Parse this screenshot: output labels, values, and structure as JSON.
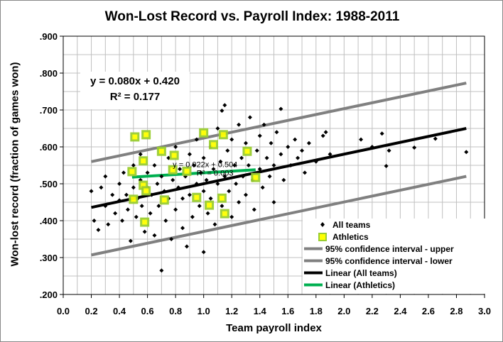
{
  "chart_data": {
    "type": "scatter",
    "title": "Won-Lost Record vs. Payroll Index: 1988-2011",
    "xlabel": "Team payroll index",
    "ylabel": "Won-lost record (fraction of games won)",
    "xlim": [
      0.0,
      3.0
    ],
    "ylim": [
      0.2,
      0.9
    ],
    "x_ticks": [
      "0.0",
      "0.2",
      "0.4",
      "0.6",
      "0.8",
      "1.0",
      "1.2",
      "1.4",
      "1.6",
      "1.8",
      "2.0",
      "2.2",
      "2.4",
      "2.6",
      "2.8",
      "3.0"
    ],
    "y_ticks": [
      ".200",
      ".300",
      ".400",
      ".500",
      ".600",
      ".700",
      ".800",
      ".900"
    ],
    "grid": true,
    "legend_position": "bottom-right",
    "equation": {
      "line1": "y = 0.080x + 0.420",
      "line2": "R² = 0.177"
    },
    "athletics_equation": {
      "line1": "y = 0.022x + 0.504",
      "line2": "R² = 0.003"
    },
    "series": [
      {
        "name": "All teams",
        "kind": "points",
        "color": "#000000",
        "points": [
          [
            0.2,
            0.48
          ],
          [
            0.22,
            0.4
          ],
          [
            0.25,
            0.375
          ],
          [
            0.27,
            0.49
          ],
          [
            0.3,
            0.44
          ],
          [
            0.3,
            0.52
          ],
          [
            0.32,
            0.39
          ],
          [
            0.35,
            0.47
          ],
          [
            0.37,
            0.42
          ],
          [
            0.4,
            0.5
          ],
          [
            0.4,
            0.455
          ],
          [
            0.42,
            0.4
          ],
          [
            0.43,
            0.53
          ],
          [
            0.45,
            0.47
          ],
          [
            0.46,
            0.43
          ],
          [
            0.48,
            0.345
          ],
          [
            0.5,
            0.49
          ],
          [
            0.5,
            0.55
          ],
          [
            0.52,
            0.41
          ],
          [
            0.53,
            0.46
          ],
          [
            0.55,
            0.51
          ],
          [
            0.55,
            0.58
          ],
          [
            0.56,
            0.44
          ],
          [
            0.58,
            0.37
          ],
          [
            0.6,
            0.49
          ],
          [
            0.6,
            0.53
          ],
          [
            0.62,
            0.42
          ],
          [
            0.63,
            0.47
          ],
          [
            0.65,
            0.55
          ],
          [
            0.65,
            0.36
          ],
          [
            0.67,
            0.5
          ],
          [
            0.68,
            0.44
          ],
          [
            0.7,
            0.265
          ],
          [
            0.7,
            0.52
          ],
          [
            0.72,
            0.48
          ],
          [
            0.73,
            0.4
          ],
          [
            0.75,
            0.57
          ],
          [
            0.75,
            0.46
          ],
          [
            0.77,
            0.35
          ],
          [
            0.78,
            0.51
          ],
          [
            0.8,
            0.43
          ],
          [
            0.8,
            0.6
          ],
          [
            0.82,
            0.49
          ],
          [
            0.83,
            0.54
          ],
          [
            0.85,
            0.38
          ],
          [
            0.85,
            0.46
          ],
          [
            0.87,
            0.52
          ],
          [
            0.88,
            0.33
          ],
          [
            0.9,
            0.58
          ],
          [
            0.9,
            0.47
          ],
          [
            0.92,
            0.41
          ],
          [
            0.93,
            0.55
          ],
          [
            0.95,
            0.5
          ],
          [
            0.95,
            0.62
          ],
          [
            0.97,
            0.44
          ],
          [
            0.98,
            0.53
          ],
          [
            1.0,
            0.315
          ],
          [
            1.0,
            0.48
          ],
          [
            1.0,
            0.57
          ],
          [
            1.02,
            0.51
          ],
          [
            1.03,
            0.42
          ],
          [
            1.05,
            0.6
          ],
          [
            1.05,
            0.46
          ],
          [
            1.07,
            0.54
          ],
          [
            1.08,
            0.39
          ],
          [
            1.1,
            0.5
          ],
          [
            1.1,
            0.65
          ],
          [
            1.12,
            0.56
          ],
          [
            1.13,
            0.698
          ],
          [
            1.13,
            0.44
          ],
          [
            1.15,
            0.713
          ],
          [
            1.15,
            0.52
          ],
          [
            1.17,
            0.59
          ],
          [
            1.18,
            0.48
          ],
          [
            1.2,
            0.62
          ],
          [
            1.2,
            0.41
          ],
          [
            1.22,
            0.55
          ],
          [
            1.23,
            0.5
          ],
          [
            1.25,
            0.66
          ],
          [
            1.25,
            0.45
          ],
          [
            1.27,
            0.57
          ],
          [
            1.28,
            0.52
          ],
          [
            1.3,
            0.61
          ],
          [
            1.3,
            0.47
          ],
          [
            1.32,
            0.55
          ],
          [
            1.33,
            0.68
          ],
          [
            1.35,
            0.51
          ],
          [
            1.36,
            0.43
          ],
          [
            1.38,
            0.59
          ],
          [
            1.4,
            0.63
          ],
          [
            1.4,
            0.54
          ],
          [
            1.42,
            0.49
          ],
          [
            1.43,
            0.66
          ],
          [
            1.45,
            0.57
          ],
          [
            1.47,
            0.52
          ],
          [
            1.48,
            0.61
          ],
          [
            1.5,
            0.55
          ],
          [
            1.5,
            0.45
          ],
          [
            1.52,
            0.64
          ],
          [
            1.55,
            0.703
          ],
          [
            1.55,
            0.58
          ],
          [
            1.57,
            0.51
          ],
          [
            1.6,
            0.6
          ],
          [
            1.62,
            0.55
          ],
          [
            1.65,
            0.62
          ],
          [
            1.67,
            0.57
          ],
          [
            1.7,
            0.59
          ],
          [
            1.72,
            0.53
          ],
          [
            1.75,
            0.61
          ],
          [
            1.8,
            0.56
          ],
          [
            1.85,
            0.63
          ],
          [
            1.87,
            0.64
          ],
          [
            1.9,
            0.58
          ],
          [
            2.12,
            0.62
          ],
          [
            2.2,
            0.6
          ],
          [
            2.27,
            0.636
          ],
          [
            2.3,
            0.548
          ],
          [
            2.32,
            0.59
          ],
          [
            2.5,
            0.598
          ],
          [
            2.65,
            0.622
          ],
          [
            2.87,
            0.586
          ]
        ]
      },
      {
        "name": "Athletics",
        "kind": "squares",
        "color": "#ffff00",
        "border": "#9acd32",
        "points": [
          [
            0.51,
            0.627
          ],
          [
            0.59,
            0.633
          ],
          [
            0.7,
            0.588
          ],
          [
            0.79,
            0.577
          ],
          [
            1.0,
            0.638
          ],
          [
            1.07,
            0.606
          ],
          [
            1.14,
            0.633
          ],
          [
            1.31,
            0.588
          ],
          [
            1.37,
            0.517
          ],
          [
            0.49,
            0.533
          ],
          [
            0.57,
            0.562
          ],
          [
            0.57,
            0.496
          ],
          [
            0.59,
            0.481
          ],
          [
            0.78,
            0.538
          ],
          [
            0.5,
            0.458
          ],
          [
            0.72,
            0.456
          ],
          [
            0.95,
            0.463
          ],
          [
            1.04,
            0.442
          ],
          [
            1.13,
            0.461
          ],
          [
            1.15,
            0.419
          ],
          [
            0.58,
            0.396
          ],
          [
            0.88,
            0.534
          ]
        ]
      },
      {
        "name": "95% confidence interval - upper",
        "kind": "line",
        "color": "#808080",
        "points": [
          [
            0.2,
            0.56
          ],
          [
            2.87,
            0.773
          ]
        ]
      },
      {
        "name": "95% confidence interval - lower",
        "kind": "line",
        "color": "#808080",
        "points": [
          [
            0.2,
            0.307
          ],
          [
            2.87,
            0.52
          ]
        ]
      },
      {
        "name": "Linear (All teams)",
        "kind": "line",
        "color": "#000000",
        "points": [
          [
            0.2,
            0.436
          ],
          [
            2.87,
            0.65
          ]
        ]
      },
      {
        "name": "Linear (Athletics)",
        "kind": "line",
        "color": "#00b050",
        "points": [
          [
            0.49,
            0.518
          ],
          [
            1.37,
            0.538
          ]
        ]
      }
    ]
  }
}
